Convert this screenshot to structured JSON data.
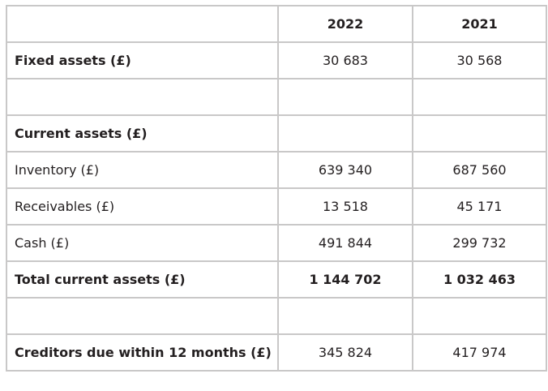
{
  "table": {
    "header": {
      "label": "",
      "year_1": "2022",
      "year_2": "2021"
    },
    "rows": [
      {
        "label": "Fixed assets (£)",
        "y2022": "30 683",
        "y2021": "30 568",
        "bold_label": true,
        "bold_values": false
      },
      {
        "label": "",
        "y2022": "",
        "y2021": "",
        "bold_label": false,
        "bold_values": false
      },
      {
        "label": "Current assets (£)",
        "y2022": "",
        "y2021": "",
        "bold_label": true,
        "bold_values": false
      },
      {
        "label": "Inventory (£)",
        "y2022": "639 340",
        "y2021": "687 560",
        "bold_label": false,
        "bold_values": false
      },
      {
        "label": "Receivables (£)",
        "y2022": "13 518",
        "y2021": "45 171",
        "bold_label": false,
        "bold_values": false
      },
      {
        "label": "Cash (£)",
        "y2022": "491 844",
        "y2021": "299 732",
        "bold_label": false,
        "bold_values": false
      },
      {
        "label": "Total current assets (£)",
        "y2022": "1 144 702",
        "y2021": "1 032 463",
        "bold_label": true,
        "bold_values": true
      },
      {
        "label": "",
        "y2022": "",
        "y2021": "",
        "bold_label": false,
        "bold_values": false
      },
      {
        "label": "Creditors due within 12 months (£)",
        "y2022": "345 824",
        "y2021": "417 974",
        "bold_label": true,
        "bold_values": false
      }
    ]
  },
  "colors": {
    "border": "#c9c8c8",
    "text": "#231f20",
    "background": "#ffffff"
  }
}
